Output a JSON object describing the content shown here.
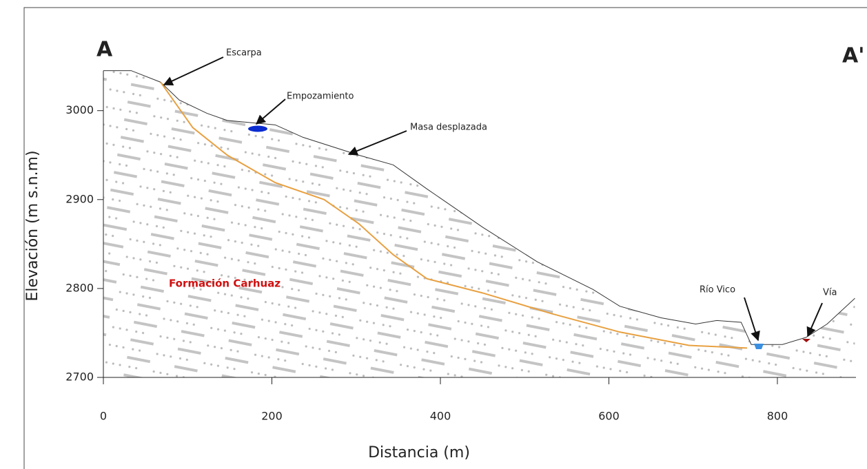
{
  "chart_data": {
    "type": "line",
    "xlabel": "Distancia (m)",
    "ylabel": "Elevación (m s.n.m)",
    "xlim": [
      0,
      890
    ],
    "ylim": [
      2700,
      3047
    ],
    "xticks": [
      0,
      200,
      400,
      600,
      800
    ],
    "yticks": [
      2700,
      2800,
      2900,
      3000
    ],
    "series": [
      {
        "color": "#333333",
        "x": [
          0,
          33,
          68,
          90,
          123,
          147,
          204,
          237,
          303,
          344,
          384,
          450,
          515,
          581,
          613,
          662,
          703,
          728,
          757,
          769,
          785,
          806,
          834,
          859,
          892
        ],
        "values": [
          3045,
          3045,
          3032,
          3012,
          2997,
          2989,
          2984,
          2970,
          2950,
          2939,
          2912,
          2869,
          2830,
          2799,
          2780,
          2767,
          2760,
          2764,
          2762,
          2737,
          2737,
          2737,
          2745,
          2760,
          2789
        ]
      },
      {
        "color": "#e8a040",
        "x": [
          68,
          106,
          147,
          204,
          262,
          303,
          344,
          384,
          450,
          531,
          613,
          695,
          764
        ],
        "values": [
          3032,
          2981,
          2950,
          2919,
          2900,
          2873,
          2838,
          2811,
          2795,
          2772,
          2751,
          2736,
          2733
        ]
      }
    ],
    "annotations": [
      "A",
      "A'",
      "Escarpa",
      "Empozamiento",
      "Masa desplazada",
      "Formación Carhuaz",
      "Río Vico",
      "Vía"
    ]
  }
}
